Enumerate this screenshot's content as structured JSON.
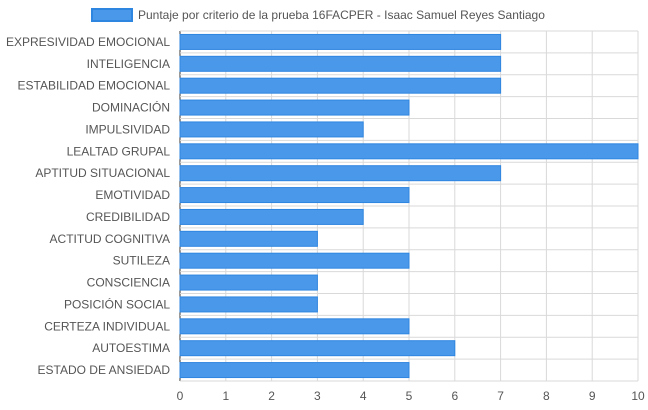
{
  "chart_data": {
    "type": "bar",
    "orientation": "horizontal",
    "categories": [
      "EXPRESIVIDAD EMOCIONAL",
      "INTELIGENCIA",
      "ESTABILIDAD EMOCIONAL",
      "DOMINACIÓN",
      "IMPULSIVIDAD",
      "LEALTAD GRUPAL",
      "APTITUD SITUACIONAL",
      "EMOTIVIDAD",
      "CREDIBILIDAD",
      "ACTITUD COGNITIVA",
      "SUTILEZA",
      "CONSCIENCIA",
      "POSICIÓN SOCIAL",
      "CERTEZA INDIVIDUAL",
      "AUTOESTIMA",
      "ESTADO DE ANSIEDAD"
    ],
    "series": [
      {
        "name": "Puntaje por criterio de la prueba 16FACPER - Isaac Samuel Reyes Santiago",
        "values": [
          7,
          7,
          7,
          5,
          4,
          10,
          7,
          5,
          4,
          3,
          5,
          3,
          3,
          5,
          6,
          5
        ]
      }
    ],
    "xlim": [
      0,
      10
    ],
    "x_ticks": [
      "0",
      "1",
      "2",
      "3",
      "4",
      "5",
      "6",
      "7",
      "8",
      "9",
      "10"
    ],
    "grid": true,
    "legend_position": "top",
    "colors": {
      "bar_fill": "#4a98ea",
      "bar_stroke": "#2f86e0",
      "grid": "#d9d9d9",
      "text": "#555555"
    }
  }
}
